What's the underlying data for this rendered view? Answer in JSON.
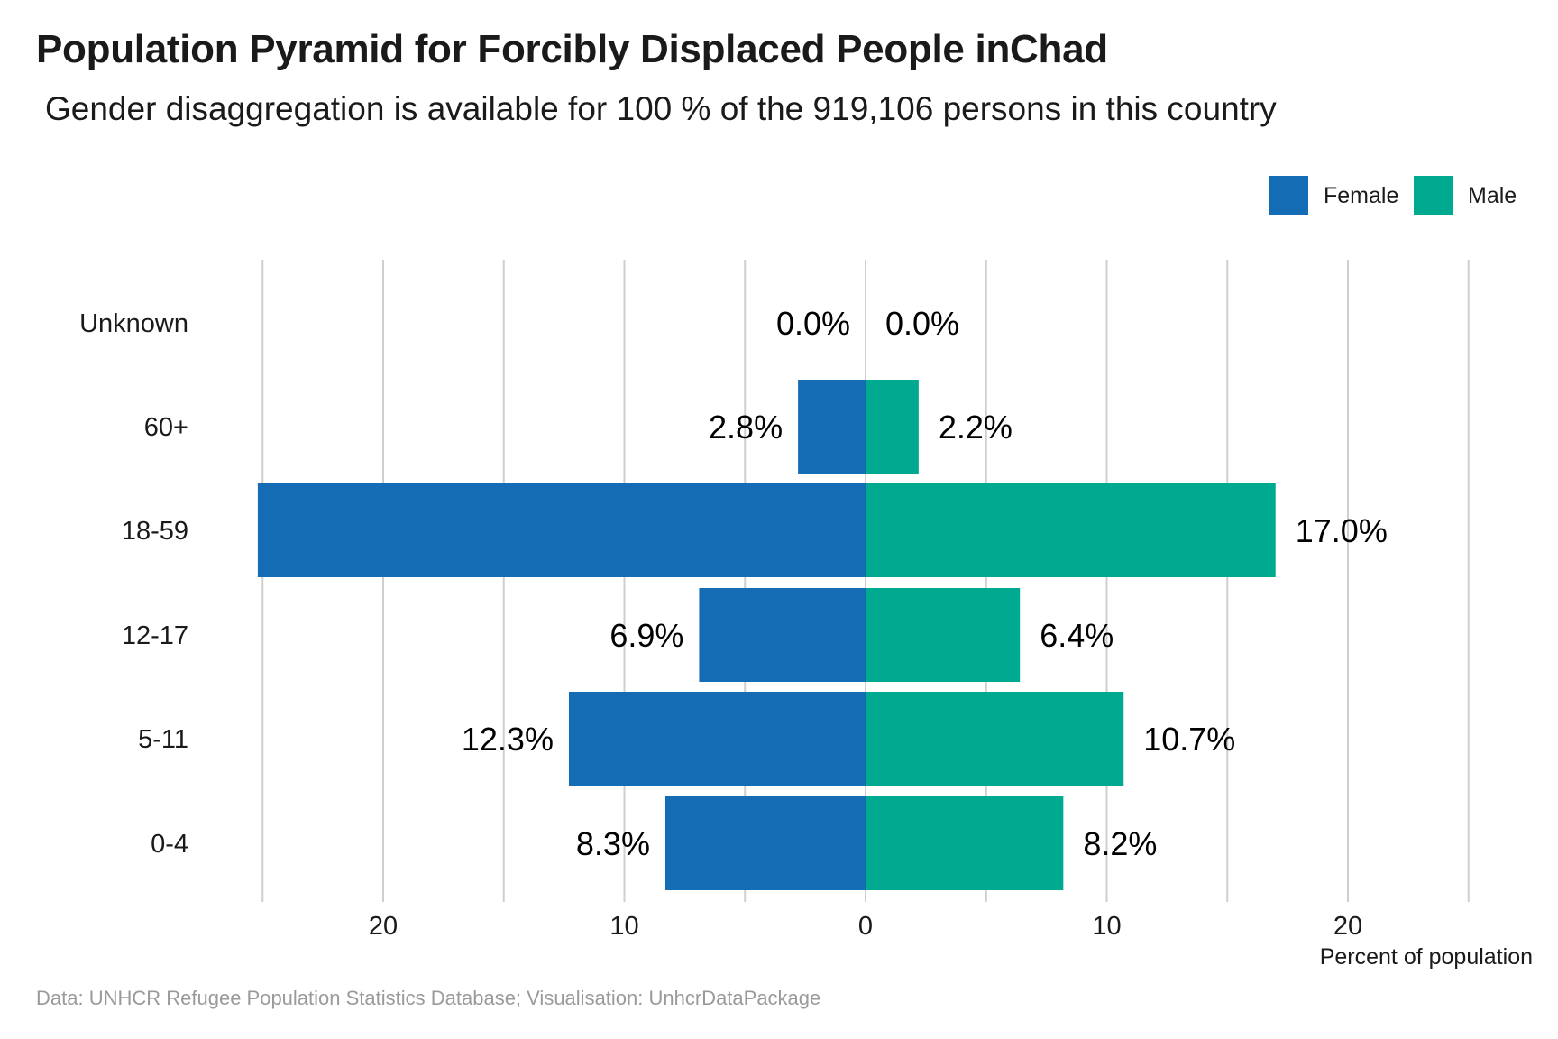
{
  "title": "Population Pyramid for Forcibly Displaced People inChad",
  "subtitle": "Gender disaggregation is available for 100 % of the 919,106 persons in this country",
  "caption": "Data: UNHCR Refugee Population Statistics Database; Visualisation: UnhcrDataPackage",
  "colors": {
    "female": "#146CB4",
    "male": "#00AA90",
    "grid": "#cfcfcf"
  },
  "chart_data": {
    "type": "bar",
    "orientation": "horizontal-pyramid",
    "categories": [
      "Unknown",
      "60+",
      "18-59",
      "12-17",
      "5-11",
      "0-4"
    ],
    "series": [
      {
        "name": "Female",
        "values": [
          0.0,
          2.8,
          25.2,
          6.9,
          12.3,
          8.3
        ],
        "labels": [
          "0.0%",
          "2.8%",
          "",
          "6.9%",
          "12.3%",
          "8.3%"
        ]
      },
      {
        "name": "Male",
        "values": [
          0.0,
          2.2,
          17.0,
          6.4,
          10.7,
          8.2
        ],
        "labels": [
          "0.0%",
          "2.2%",
          "17.0%",
          "6.4%",
          "10.7%",
          "8.2%"
        ]
      }
    ],
    "xlabel": "Percent of population",
    "xlim": [
      -25,
      25
    ],
    "xticks": [
      -20,
      -10,
      0,
      10,
      20
    ],
    "xtick_labels": [
      "20",
      "10",
      "0",
      "10",
      "20"
    ],
    "legend": {
      "placement": "top-right",
      "entries": [
        "Female",
        "Male"
      ]
    },
    "grid": true
  }
}
